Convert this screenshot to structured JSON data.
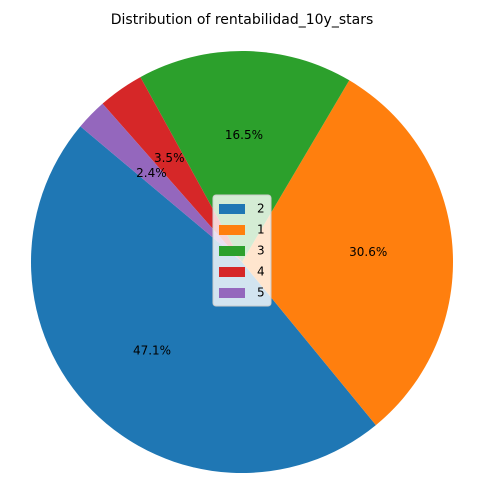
{
  "chart_data": {
    "type": "pie",
    "title": "Distribution of rentabilidad_10y_stars",
    "start_angle_deg": 140,
    "direction": "counterclockwise",
    "legend_position": "center",
    "slices": [
      {
        "label": "2",
        "value": 47.1,
        "pct_label": "47.1%",
        "color": "#1f77b4"
      },
      {
        "label": "1",
        "value": 30.6,
        "pct_label": "30.6%",
        "color": "#ff7f0e"
      },
      {
        "label": "3",
        "value": 16.5,
        "pct_label": "16.5%",
        "color": "#2ca02c"
      },
      {
        "label": "4",
        "value": 3.5,
        "pct_label": "3.5%",
        "color": "#d62728"
      },
      {
        "label": "5",
        "value": 2.4,
        "pct_label": "2.4%",
        "color": "#9467bd"
      }
    ]
  }
}
